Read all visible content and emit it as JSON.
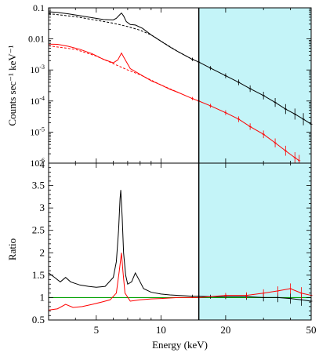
{
  "chart_data": [
    {
      "type": "line",
      "panel": "top",
      "ylabel": "Counts sec⁻¹ keV⁻¹",
      "xlabel": "",
      "xscale": "log",
      "yscale": "log",
      "xlim": [
        3,
        50
      ],
      "ylim": [
        1e-06,
        0.1
      ],
      "yticks": [
        {
          "value": 0.1,
          "label": "0.1"
        },
        {
          "value": 0.01,
          "label": "0.01"
        },
        {
          "value": 0.001,
          "base": "10",
          "exp": "-3"
        },
        {
          "value": 0.0001,
          "base": "10",
          "exp": "-4"
        },
        {
          "value": 1e-05,
          "base": "10",
          "exp": "-5"
        },
        {
          "value": 1e-06,
          "base": "10",
          "exp": "-6"
        }
      ],
      "shaded_region": {
        "x": [
          15,
          50
        ],
        "color": "#c4f4f8"
      },
      "divider_x": 15,
      "series": [
        {
          "color": "#000000",
          "points": [
            [
              3,
              0.075
            ],
            [
              3.3,
              0.071
            ],
            [
              3.7,
              0.064
            ],
            [
              4.2,
              0.056
            ],
            [
              4.8,
              0.048
            ],
            [
              5.4,
              0.042
            ],
            [
              6.0,
              0.041
            ],
            [
              6.2,
              0.046
            ],
            [
              6.4,
              0.058
            ],
            [
              6.55,
              0.068
            ],
            [
              6.7,
              0.055
            ],
            [
              6.9,
              0.036
            ],
            [
              7.2,
              0.029
            ],
            [
              7.6,
              0.028
            ],
            [
              8.2,
              0.022
            ],
            [
              9,
              0.0135
            ],
            [
              10,
              0.0084
            ],
            [
              11,
              0.0055
            ],
            [
              12,
              0.0039
            ],
            [
              14,
              0.0022
            ],
            [
              15,
              0.0018
            ],
            [
              17,
              0.00115
            ],
            [
              20,
              0.00065
            ],
            [
              23,
              0.0004
            ],
            [
              26,
              0.00025
            ],
            [
              30,
              0.00015
            ],
            [
              34,
              9e-05
            ],
            [
              38,
              5.5e-05
            ],
            [
              42,
              3.8e-05
            ],
            [
              46,
              2.6e-05
            ],
            [
              50,
              1.8e-05
            ]
          ]
        },
        {
          "color": "#000000",
          "dashed": true,
          "points": [
            [
              3,
              0.065
            ],
            [
              4,
              0.052
            ],
            [
              5,
              0.04
            ],
            [
              6,
              0.032
            ],
            [
              7,
              0.025
            ],
            [
              8,
              0.019
            ],
            [
              9,
              0.0135
            ],
            [
              10,
              0.0085
            ],
            [
              12,
              0.0039
            ],
            [
              14,
              0.0022
            ]
          ]
        },
        {
          "color": "#ff0000",
          "points": [
            [
              3,
              0.0068
            ],
            [
              3.3,
              0.0067
            ],
            [
              3.7,
              0.0058
            ],
            [
              4.2,
              0.0046
            ],
            [
              4.8,
              0.0033
            ],
            [
              5.4,
              0.0022
            ],
            [
              6.0,
              0.0017
            ],
            [
              6.3,
              0.0021
            ],
            [
              6.55,
              0.0035
            ],
            [
              6.75,
              0.0024
            ],
            [
              7.2,
              0.0011
            ],
            [
              8,
              0.00072
            ],
            [
              9,
              0.00045
            ],
            [
              10,
              0.00033
            ],
            [
              11,
              0.00024
            ],
            [
              12,
              0.00019
            ],
            [
              14,
              0.00012
            ],
            [
              15,
              0.0001
            ],
            [
              17,
              7e-05
            ],
            [
              20,
              4.2e-05
            ],
            [
              23,
              2.6e-05
            ],
            [
              26,
              1.5e-05
            ],
            [
              30,
              8.5e-06
            ],
            [
              34,
              4.5e-06
            ],
            [
              38,
              2.5e-06
            ],
            [
              42,
              1.5e-06
            ],
            [
              44,
              1.2e-06
            ]
          ]
        },
        {
          "color": "#ff0000",
          "dashed": true,
          "points": [
            [
              3,
              0.006
            ],
            [
              4,
              0.0046
            ],
            [
              5,
              0.0028
            ],
            [
              6,
              0.0016
            ],
            [
              7,
              0.001
            ],
            [
              8,
              0.0007
            ],
            [
              10,
              0.00033
            ],
            [
              12,
              0.00019
            ]
          ]
        }
      ]
    },
    {
      "type": "line",
      "panel": "bottom",
      "ylabel": "Ratio",
      "xlabel": "Energy (keV)",
      "xscale": "log",
      "xlim": [
        3,
        50
      ],
      "ylim": [
        0.5,
        4
      ],
      "yticks": [
        {
          "value": 0.5,
          "label": "0.5"
        },
        {
          "value": 1,
          "label": "1"
        },
        {
          "value": 1.5,
          "label": "1.5"
        },
        {
          "value": 2,
          "label": "2"
        },
        {
          "value": 2.5,
          "label": "2.5"
        },
        {
          "value": 3,
          "label": "3"
        },
        {
          "value": 3.5,
          "label": "3.5"
        },
        {
          "value": 4,
          "label": "4"
        }
      ],
      "xticks": [
        {
          "value": 5,
          "label": "5"
        },
        {
          "value": 10,
          "label": "10"
        },
        {
          "value": 20,
          "label": "20"
        },
        {
          "value": 50,
          "label": "50"
        }
      ],
      "reference_line": {
        "y": 1,
        "color": "#00a000"
      },
      "shaded_region": {
        "x": [
          15,
          50
        ],
        "color": "#c4f4f8"
      },
      "divider_x": 15,
      "series": [
        {
          "color": "#000000",
          "points": [
            [
              3,
              1.55
            ],
            [
              3.2,
              1.45
            ],
            [
              3.4,
              1.35
            ],
            [
              3.6,
              1.45
            ],
            [
              3.8,
              1.35
            ],
            [
              4.2,
              1.28
            ],
            [
              4.6,
              1.25
            ],
            [
              5,
              1.23
            ],
            [
              5.5,
              1.25
            ],
            [
              6.0,
              1.45
            ],
            [
              6.2,
              1.8
            ],
            [
              6.35,
              2.5
            ],
            [
              6.45,
              3.2
            ],
            [
              6.5,
              3.4
            ],
            [
              6.6,
              2.8
            ],
            [
              6.7,
              2.0
            ],
            [
              6.85,
              1.5
            ],
            [
              7.0,
              1.3
            ],
            [
              7.3,
              1.35
            ],
            [
              7.6,
              1.55
            ],
            [
              7.9,
              1.4
            ],
            [
              8.3,
              1.2
            ],
            [
              9,
              1.12
            ],
            [
              10,
              1.08
            ],
            [
              11,
              1.06
            ],
            [
              12,
              1.05
            ],
            [
              13,
              1.04
            ],
            [
              14,
              1.03
            ],
            [
              15,
              1.03
            ],
            [
              17,
              1.02
            ],
            [
              20,
              1.02
            ],
            [
              25,
              1.02
            ],
            [
              30,
              1.0
            ],
            [
              35,
              1.0
            ],
            [
              40,
              0.98
            ],
            [
              45,
              0.95
            ],
            [
              50,
              0.92
            ]
          ]
        },
        {
          "color": "#ff0000",
          "points": [
            [
              3,
              0.72
            ],
            [
              3.3,
              0.75
            ],
            [
              3.6,
              0.85
            ],
            [
              3.9,
              0.78
            ],
            [
              4.3,
              0.8
            ],
            [
              4.8,
              0.85
            ],
            [
              5.3,
              0.9
            ],
            [
              5.8,
              0.95
            ],
            [
              6.2,
              1.1
            ],
            [
              6.4,
              1.6
            ],
            [
              6.55,
              2.0
            ],
            [
              6.65,
              1.6
            ],
            [
              6.8,
              1.1
            ],
            [
              7.2,
              0.92
            ],
            [
              8,
              0.95
            ],
            [
              9,
              0.97
            ],
            [
              10,
              0.98
            ],
            [
              12,
              1.0
            ],
            [
              15,
              1.0
            ],
            [
              20,
              1.05
            ],
            [
              25,
              1.05
            ],
            [
              30,
              1.1
            ],
            [
              35,
              1.15
            ],
            [
              40,
              1.2
            ],
            [
              45,
              1.1
            ],
            [
              50,
              1.05
            ]
          ]
        }
      ]
    }
  ]
}
